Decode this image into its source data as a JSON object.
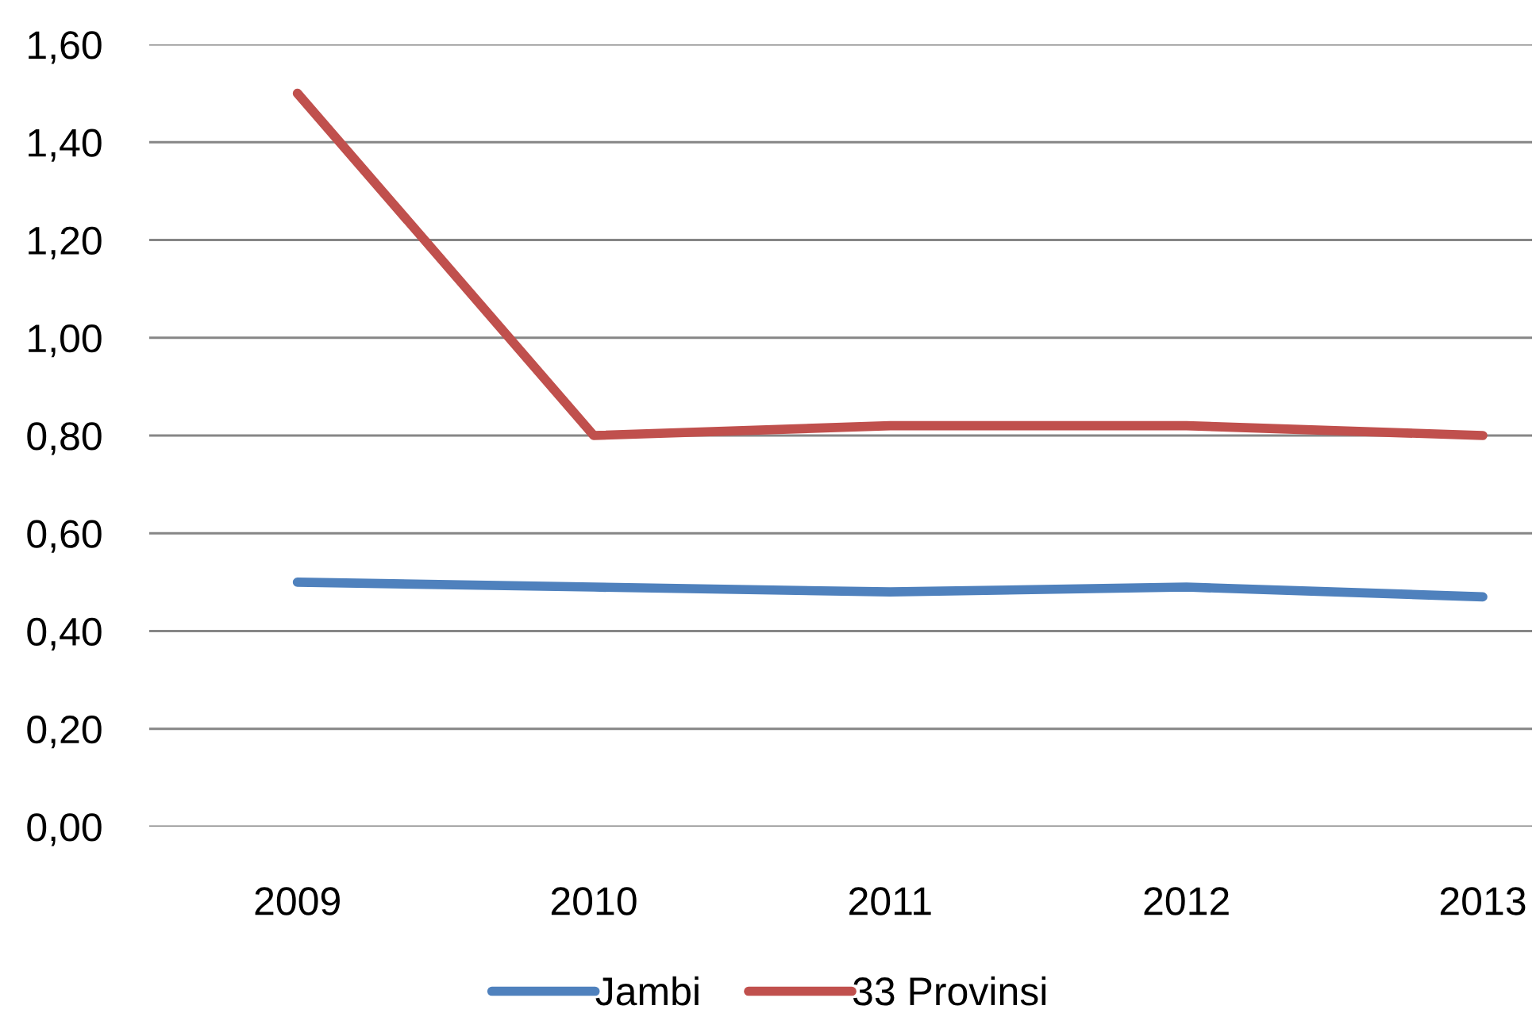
{
  "chart_data": {
    "type": "line",
    "categories": [
      "2009",
      "2010",
      "2011",
      "2012",
      "2013"
    ],
    "series": [
      {
        "name": "Jambi",
        "color": "#4f81bd",
        "values": [
          0.5,
          0.49,
          0.48,
          0.49,
          0.47
        ]
      },
      {
        "name": "33 Provinsi",
        "color": "#c0504d",
        "values": [
          1.5,
          0.8,
          0.82,
          0.82,
          0.8
        ]
      }
    ],
    "ylim": [
      0,
      1.6
    ],
    "yticks": [
      {
        "value": 0,
        "label": "0,00"
      },
      {
        "value": 0.2,
        "label": "0,20"
      },
      {
        "value": 0.4,
        "label": "0,40"
      },
      {
        "value": 0.6,
        "label": "0,60"
      },
      {
        "value": 0.8,
        "label": "0,80"
      },
      {
        "value": 1.0,
        "label": "1,00"
      },
      {
        "value": 1.2,
        "label": "1,20"
      },
      {
        "value": 1.4,
        "label": "1,40"
      },
      {
        "value": 1.6,
        "label": "1,60"
      }
    ],
    "grid": "y",
    "legend": "bottom",
    "marker": "none",
    "line_style": "solid"
  }
}
